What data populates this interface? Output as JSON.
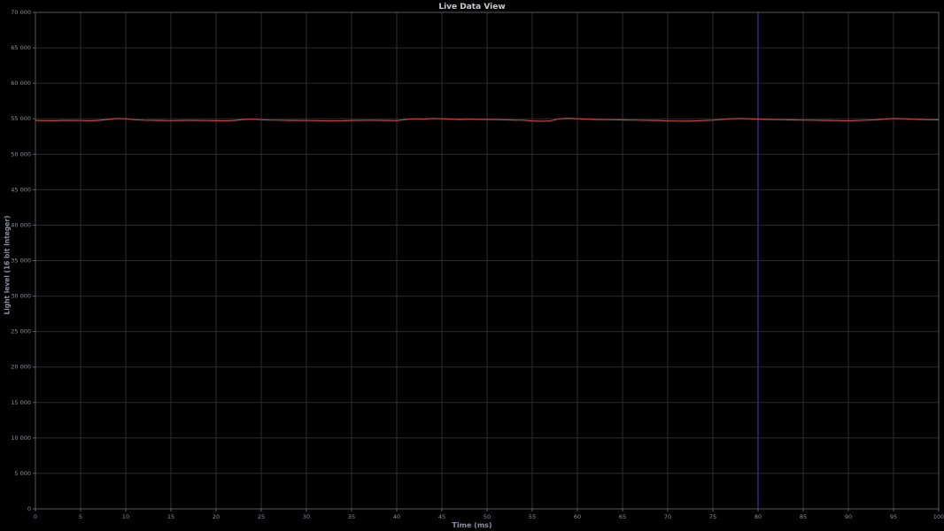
{
  "window": {
    "title": "Live Data View"
  },
  "chart_data": {
    "type": "line",
    "title": "Live Data View",
    "xlabel": "Time (ms)",
    "ylabel": "Light level (16 bit Integer)",
    "xlim": [
      0,
      100
    ],
    "ylim": [
      0,
      70000
    ],
    "grid": true,
    "x_ticks": [
      0,
      5,
      10,
      15,
      20,
      25,
      30,
      35,
      40,
      45,
      50,
      55,
      60,
      65,
      70,
      75,
      80,
      85,
      90,
      95,
      100
    ],
    "x_tick_labels": [
      "0",
      "5",
      "10",
      "15",
      "20",
      "25",
      "30",
      "35",
      "40",
      "45",
      "50",
      "55",
      "60",
      "65",
      "70",
      "75",
      "80",
      "85",
      "90",
      "95",
      "100"
    ],
    "y_ticks": [
      0,
      5000,
      10000,
      15000,
      20000,
      25000,
      30000,
      35000,
      40000,
      45000,
      50000,
      55000,
      60000,
      65000,
      70000
    ],
    "y_tick_labels": [
      "0",
      "5 000",
      "10 000",
      "15 000",
      "20 000",
      "25 000",
      "30 000",
      "35 000",
      "40 000",
      "45 000",
      "50 000",
      "55 000",
      "60 000",
      "65 000",
      "70 000"
    ],
    "cursor_x": 80,
    "colors": {
      "background": "#000000",
      "grid": "#2e2e2e",
      "border": "#585858",
      "tick": "#55607a",
      "tick_label": "#8a90a0",
      "series": "#c84646",
      "cursor": "#2c2c8a",
      "title": "#c8ccd8",
      "axis_label": "#8a90a0"
    },
    "series": [
      {
        "name": "light-level",
        "color": "#c84646",
        "x_start": 0,
        "x_step": 1,
        "values": [
          54760,
          54740,
          54730,
          54760,
          54770,
          54750,
          54720,
          54780,
          54900,
          55050,
          55000,
          54870,
          54800,
          54780,
          54760,
          54740,
          54760,
          54780,
          54770,
          54750,
          54730,
          54720,
          54760,
          54900,
          54950,
          54870,
          54820,
          54800,
          54780,
          54770,
          54750,
          54740,
          54720,
          54700,
          54720,
          54760,
          54780,
          54800,
          54780,
          54760,
          54740,
          54900,
          55000,
          54950,
          55050,
          55000,
          54950,
          54900,
          54950,
          54920,
          54900,
          54880,
          54850,
          54820,
          54800,
          54700,
          54650,
          54700,
          55000,
          55080,
          55000,
          54950,
          54900,
          54880,
          54860,
          54840,
          54820,
          54800,
          54780,
          54760,
          54700,
          54680,
          54660,
          54700,
          54750,
          54800,
          54900,
          55000,
          55050,
          55000,
          54950,
          54900,
          54880,
          54860,
          54840,
          54820,
          54800,
          54780,
          54760,
          54740,
          54720,
          54750,
          54800,
          54850,
          54950,
          55050,
          55000,
          54950,
          54900,
          54870,
          54850
        ]
      }
    ]
  }
}
